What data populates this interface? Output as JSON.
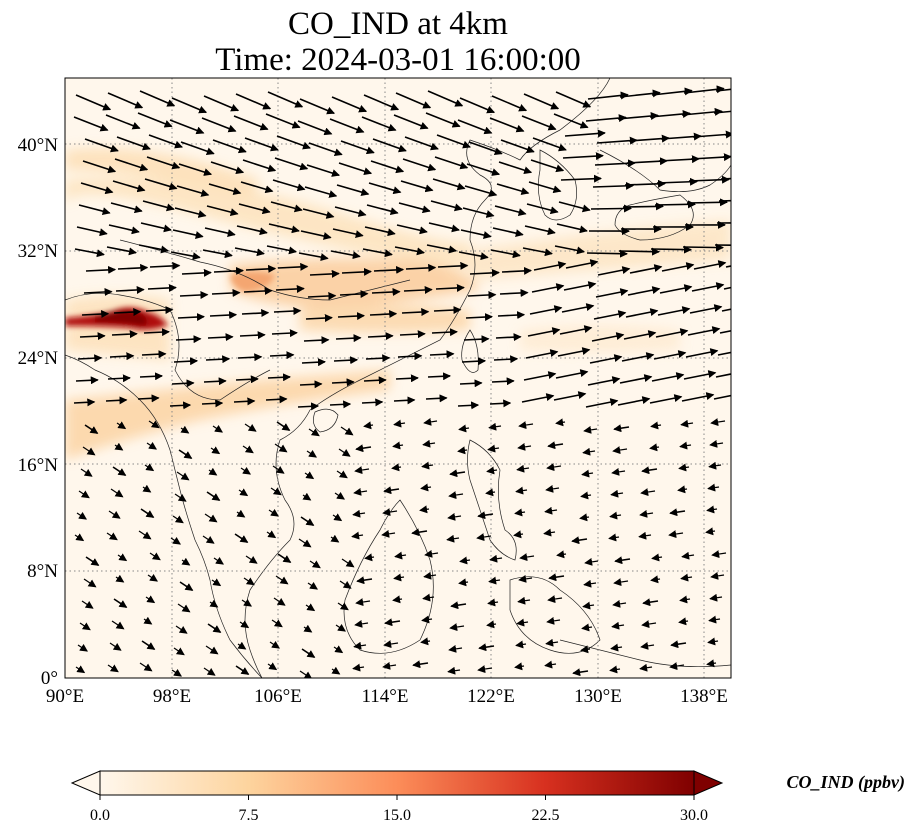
{
  "title": {
    "line1": "CO_IND at 4km",
    "line2": "Time: 2024-03-01 16:00:00"
  },
  "map": {
    "lon_range": [
      90,
      140
    ],
    "lat_range": [
      0,
      45
    ],
    "gridlines": true,
    "lon_ticks": [
      "90°E",
      "98°E",
      "106°E",
      "114°E",
      "122°E",
      "130°E",
      "138°E"
    ],
    "lat_ticks": [
      "0°",
      "8°N",
      "16°N",
      "24°N",
      "32°N",
      "40°N"
    ],
    "field_colormap": "OrRd",
    "overlay": "wind vectors"
  },
  "colorbar": {
    "title": "CO_IND (ppbv)",
    "min": 0.0,
    "max": 30.0,
    "ticks": [
      "0.0",
      "7.5",
      "15.0",
      "22.5",
      "30.0"
    ],
    "colors": [
      "#fff7ec",
      "#fdd49e",
      "#fc8d59",
      "#d7301f",
      "#7f0000"
    ]
  }
}
